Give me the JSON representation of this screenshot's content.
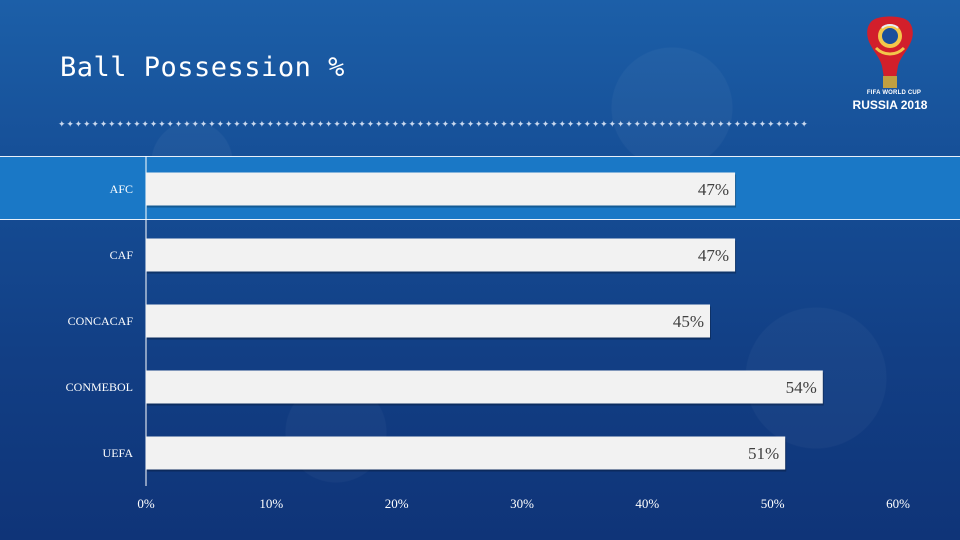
{
  "slide": {
    "title": "Ball Possession %",
    "divider": "✦✦✦✦✦✦✦✦✦✦✦✦✦✦✦✦✦✦✦✦✦✦✦✦✦✦✦✦✦✦✦✦✦✦✦✦✦✦✦✦✦✦✦✦✦✦✦✦✦✦✦✦✦✦✦✦✦✦✦✦✦✦✦✦✦✦✦✦✦✦✦✦✦✦✦✦✦✦✦✦✦✦✦✦✦✦✦✦✦✦"
  },
  "logo": {
    "line1": "FIFA WORLD CUP",
    "line2": "RUSSIA 2018"
  },
  "colors": {
    "bar": "#f2f2f2",
    "highlight": "#1a78c6",
    "axis": "#ffffff"
  },
  "chart_data": {
    "type": "bar",
    "orientation": "horizontal",
    "title": "Ball Possession %",
    "categories": [
      "AFC",
      "CAF",
      "CONCACAF",
      "CONMEBOL",
      "UEFA"
    ],
    "values": [
      47,
      47,
      45,
      54,
      51
    ],
    "data_labels": [
      "47%",
      "47%",
      "45%",
      "54%",
      "51%"
    ],
    "xlim": [
      0,
      60
    ],
    "xticks": [
      0,
      10,
      20,
      30,
      40,
      50,
      60
    ],
    "xtick_labels": [
      "0%",
      "10%",
      "20%",
      "30%",
      "40%",
      "50%",
      "60%"
    ],
    "highlighted_category": "AFC",
    "grid": false,
    "legend": "none"
  }
}
